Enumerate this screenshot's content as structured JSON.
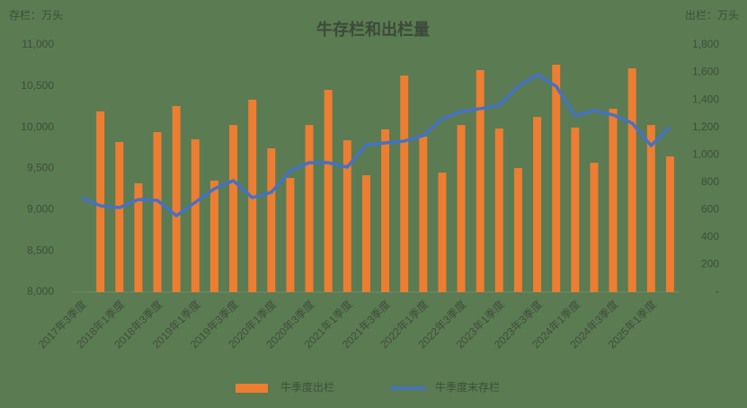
{
  "chart_data": {
    "type": "bar-line",
    "title": "牛存栏和出栏量",
    "y_label": "存栏：万头",
    "y2_label": "出栏：万头",
    "categories": [
      "2017年3季度",
      null,
      "2018年1季度",
      null,
      "2018年3季度",
      null,
      "2019年1季度",
      null,
      "2019年3季度",
      null,
      "2020年1季度",
      null,
      "2020年3季度",
      null,
      "2021年1季度",
      null,
      "2021年3季度",
      null,
      "2022年1季度",
      null,
      "2022年3季度",
      null,
      "2023年1季度",
      null,
      "2023年3季度",
      null,
      "2024年1季度",
      null,
      "2024年3季度",
      null,
      "2025年1季度",
      null
    ],
    "series": [
      {
        "name": "牛季度出栏",
        "type": "bar",
        "axis": "y2",
        "color": "#ed7d31",
        "values": [
          null,
          1316,
          1093,
          792,
          1165,
          1355,
          1113,
          812,
          1217,
          1401,
          1047,
          831,
          1217,
          1473,
          1106,
          851,
          1185,
          1577,
          1132,
          870,
          1217,
          1617,
          1191,
          903,
          1276,
          1656,
          1198,
          942,
          1335,
          1630,
          1217,
          988
        ]
      },
      {
        "name": "牛季度末存栏",
        "type": "line",
        "axis": "y",
        "color": "#4472c4",
        "values": [
          9146,
          9047,
          9025,
          9124,
          9113,
          8927,
          9091,
          9255,
          9353,
          9146,
          9211,
          9473,
          9571,
          9571,
          9517,
          9789,
          9811,
          9833,
          9899,
          10106,
          10193,
          10226,
          10270,
          10498,
          10640,
          10498,
          10139,
          10204,
          10150,
          10051,
          9778,
          10007
        ]
      }
    ],
    "ylim": [
      8000,
      11000
    ],
    "yticks": [
      {
        "value": 8000,
        "label": "8,000"
      },
      {
        "value": 8500,
        "label": "8,500"
      },
      {
        "value": 9000,
        "label": "9,000"
      },
      {
        "value": 9500,
        "label": "9,500"
      },
      {
        "value": 10000,
        "label": "10,000"
      },
      {
        "value": 10500,
        "label": "10,500"
      },
      {
        "value": 11000,
        "label": "11,000"
      }
    ],
    "y2lim": [
      0,
      1800
    ],
    "y2ticks": [
      {
        "value": 0,
        "label": "-"
      },
      200,
      400,
      600,
      800,
      {
        "value": 1000,
        "label": "1,000"
      },
      {
        "value": 1200,
        "label": "1,200"
      },
      {
        "value": 1400,
        "label": "1,400"
      },
      {
        "value": 1600,
        "label": "1,600"
      },
      {
        "value": 1800,
        "label": "1,800"
      }
    ],
    "legend": "bottom"
  }
}
